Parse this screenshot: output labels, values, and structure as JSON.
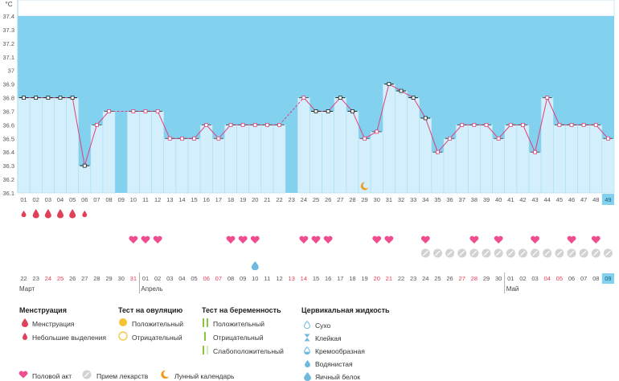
{
  "chart_data": {
    "type": "line",
    "unit_label": "°C",
    "ylim": [
      36.1,
      37.4
    ],
    "y_ticks": [
      "36.1",
      "36.2",
      "36.3",
      "36.4",
      "36.5",
      "36.6",
      "36.7",
      "36.8",
      "36.9",
      "37",
      "37.1",
      "37.2",
      "37.3",
      "37.4"
    ],
    "cycle_days": [
      "01",
      "02",
      "03",
      "04",
      "05",
      "06",
      "07",
      "08",
      "09",
      "10",
      "11",
      "12",
      "13",
      "14",
      "15",
      "16",
      "17",
      "18",
      "19",
      "20",
      "21",
      "22",
      "23",
      "24",
      "25",
      "26",
      "27",
      "28",
      "29",
      "30",
      "31",
      "32",
      "33",
      "34",
      "35",
      "36",
      "37",
      "38",
      "39",
      "40",
      "41",
      "42",
      "43",
      "44",
      "45",
      "46",
      "47",
      "48",
      "49"
    ],
    "temperature": [
      36.8,
      36.8,
      36.8,
      36.8,
      36.8,
      36.3,
      36.6,
      36.7,
      null,
      36.7,
      36.7,
      36.7,
      36.5,
      36.5,
      36.5,
      36.6,
      36.5,
      36.6,
      36.6,
      36.6,
      36.6,
      36.6,
      null,
      36.8,
      36.7,
      36.7,
      36.8,
      36.7,
      36.5,
      36.55,
      36.9,
      36.85,
      36.8,
      36.65,
      36.4,
      36.5,
      36.6,
      36.6,
      36.6,
      36.5,
      36.6,
      36.6,
      36.4,
      36.8,
      36.6,
      36.6,
      36.6,
      36.6,
      36.5
    ],
    "current_day": "49",
    "dates": [
      "22",
      "23",
      "24",
      "25",
      "26",
      "27",
      "28",
      "29",
      "30",
      "31",
      "01",
      "02",
      "03",
      "04",
      "05",
      "06",
      "07",
      "08",
      "09",
      "10",
      "11",
      "12",
      "13",
      "14",
      "15",
      "16",
      "17",
      "18",
      "19",
      "20",
      "21",
      "22",
      "23",
      "24",
      "25",
      "26",
      "27",
      "28",
      "29",
      "30",
      "01",
      "02",
      "03",
      "04",
      "05",
      "06",
      "07",
      "08",
      "09"
    ],
    "weekend_dates": [
      2,
      3,
      9,
      15,
      16,
      22,
      23,
      29,
      30,
      36,
      37,
      43,
      44
    ],
    "months": [
      {
        "label": "Март",
        "start": 0
      },
      {
        "label": "Апрель",
        "start": 10
      },
      {
        "label": "Май",
        "start": 40
      }
    ],
    "menstruation_days": [
      1,
      2,
      3,
      4
    ],
    "light_discharge_days": [
      0,
      5
    ],
    "intercourse_days": [
      9,
      10,
      11,
      17,
      18,
      19,
      23,
      24,
      25,
      29,
      30,
      33,
      37,
      39,
      42,
      45,
      47
    ],
    "medication_days": [
      33,
      34,
      35,
      36,
      37,
      38,
      39,
      40,
      41,
      42,
      43,
      44,
      45,
      46,
      47,
      48
    ],
    "egg_white_days": [
      19
    ],
    "moon_days": [
      28
    ]
  },
  "colors": {
    "plot_bg": "#81d1ef",
    "bar_fill": "#d2effb",
    "bar_edge": "#a9dcf1",
    "line": "#e0407a",
    "accent_red": "#e0405a",
    "heart": "#ef4d8f",
    "cervical": "#6fb9df",
    "ovulation_yellow": "#f6c230",
    "moon": "#f29a1d",
    "preg_green": "#8cc63e"
  },
  "legend": {
    "menstruation": {
      "title": "Менструация",
      "items": [
        {
          "label": "Менструация",
          "icon": "blood-drop-large"
        },
        {
          "label": "Небольшие выделения",
          "icon": "blood-drop-small"
        }
      ]
    },
    "ovulation_test": {
      "title": "Тест на овуляцию",
      "items": [
        {
          "label": "Положительный",
          "icon": "circle-filled-yellow"
        },
        {
          "label": "Отрицательный",
          "icon": "circle-outline-yellow"
        }
      ]
    },
    "pregnancy_test": {
      "title": "Тест на беременность",
      "items": [
        {
          "label": "Положительный",
          "icon": "two-green-bars"
        },
        {
          "label": "Отрицательный",
          "icon": "one-green-bar"
        },
        {
          "label": "Слабоположительный",
          "icon": "one-bar-one-faint-bar"
        }
      ]
    },
    "cervical_fluid": {
      "title": "Цервикальная жидкость",
      "items": [
        {
          "label": "Сухо",
          "icon": "drop-outline"
        },
        {
          "label": "Клейкая",
          "icon": "hourglass-drop"
        },
        {
          "label": "Кремообразная",
          "icon": "drop-half"
        },
        {
          "label": "Водянистая",
          "icon": "drop-small-filled"
        },
        {
          "label": "Яичный белок",
          "icon": "drop-large-filled"
        }
      ]
    },
    "bottom": [
      {
        "label": "Половой акт",
        "icon": "heart-icon"
      },
      {
        "label": "Прием лекарств",
        "icon": "pill-icon"
      },
      {
        "label": "Лунный календарь",
        "icon": "moon-icon"
      }
    ]
  }
}
